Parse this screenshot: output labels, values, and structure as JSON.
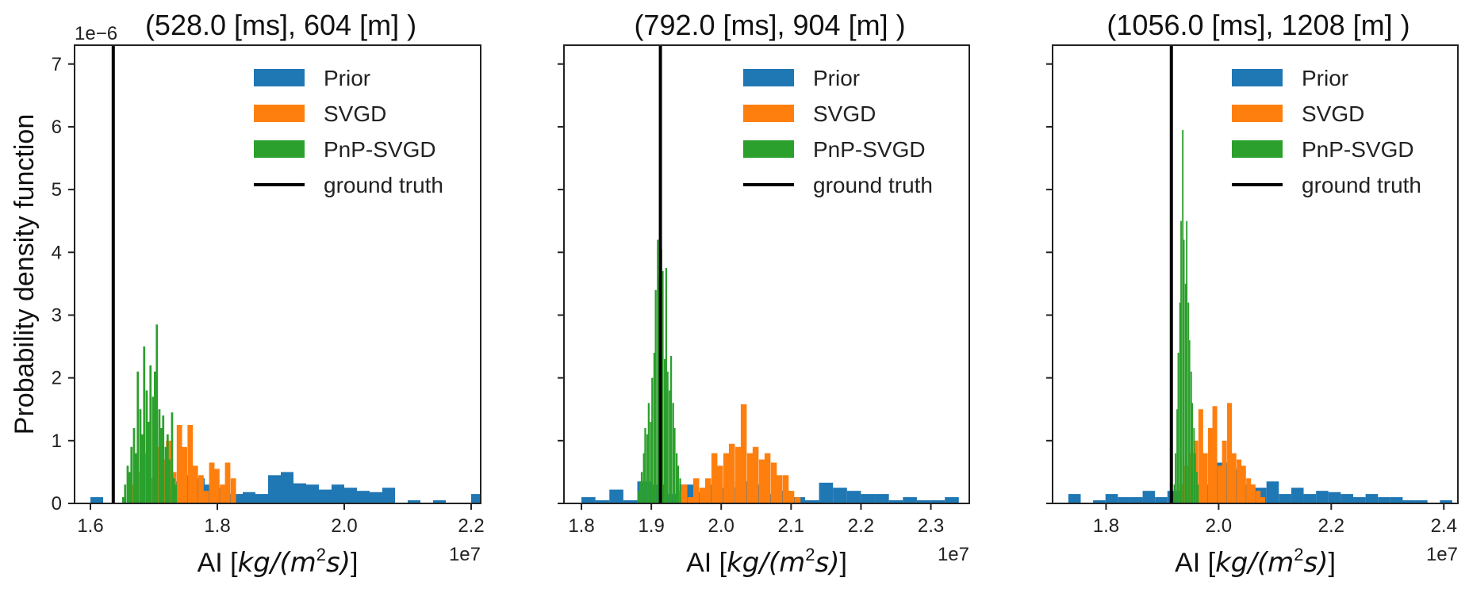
{
  "figure": {
    "ylabel": "Probability density function",
    "y_offset_label": "1e−6",
    "colors": {
      "prior": "#1f77b4",
      "svgd": "#ff7f0e",
      "pnp": "#2ca02c",
      "truth": "#000000"
    }
  },
  "chart_data": [
    {
      "type": "bar",
      "title": "(528.0 [ms], 604 [m] )",
      "xlabel_text": "AI [",
      "xlabel_math": "kg/(m",
      "xlabel_sup": "2",
      "xlabel_tail": "s)]",
      "xlabel_close": "]",
      "x_offset_label": "1e7",
      "xlim": [
        1.575,
        2.215
      ],
      "ylim": [
        0,
        7.3
      ],
      "x_ticks": [
        1.6,
        1.8,
        2.0,
        2.2
      ],
      "x_tick_labels": [
        "1.6",
        "1.8",
        "2.0",
        "2.2"
      ],
      "y_ticks": [
        0,
        1,
        2,
        3,
        4,
        5,
        6,
        7
      ],
      "y_tick_labels": [
        "0",
        "1",
        "2",
        "3",
        "4",
        "5",
        "6",
        "7"
      ],
      "ground_truth": 1.636,
      "legend": [
        "Prior",
        "SVGD",
        "PnP-SVGD",
        "ground truth"
      ],
      "series": [
        {
          "name": "Prior",
          "color_key": "prior",
          "bin_width": 0.02,
          "bins": [
            [
              1.6,
              0.1
            ],
            [
              1.62,
              0.0
            ],
            [
              1.64,
              0.0
            ],
            [
              1.66,
              0.05
            ],
            [
              1.68,
              0.12
            ],
            [
              1.7,
              0.2
            ],
            [
              1.72,
              0.35
            ],
            [
              1.74,
              0.45
            ],
            [
              1.76,
              0.4
            ],
            [
              1.78,
              0.3
            ],
            [
              1.8,
              0.25
            ],
            [
              1.82,
              0.15
            ],
            [
              1.84,
              0.18
            ],
            [
              1.86,
              0.15
            ],
            [
              1.88,
              0.45
            ],
            [
              1.9,
              0.5
            ],
            [
              1.92,
              0.32
            ],
            [
              1.94,
              0.3
            ],
            [
              1.96,
              0.22
            ],
            [
              1.98,
              0.3
            ],
            [
              2.0,
              0.25
            ],
            [
              2.02,
              0.2
            ],
            [
              2.04,
              0.18
            ],
            [
              2.06,
              0.25
            ],
            [
              2.08,
              0.0
            ],
            [
              2.1,
              0.05
            ],
            [
              2.12,
              0.0
            ],
            [
              2.14,
              0.05
            ],
            [
              2.16,
              0.0
            ],
            [
              2.18,
              0.0
            ],
            [
              2.2,
              0.15
            ]
          ]
        },
        {
          "name": "SVGD",
          "color_key": "svgd",
          "bin_width": 0.0085,
          "bins": [
            [
              1.66,
              0.3
            ],
            [
              1.668,
              0.2
            ],
            [
              1.676,
              0.5
            ],
            [
              1.685,
              0.8
            ],
            [
              1.693,
              0.4
            ],
            [
              1.702,
              0.9
            ],
            [
              1.71,
              0.7
            ],
            [
              1.719,
              1.0
            ],
            [
              1.727,
              0.5
            ],
            [
              1.736,
              1.25
            ],
            [
              1.744,
              0.9
            ],
            [
              1.753,
              1.25
            ],
            [
              1.761,
              0.6
            ],
            [
              1.77,
              0.45
            ],
            [
              1.778,
              0.2
            ],
            [
              1.787,
              0.65
            ],
            [
              1.795,
              0.55
            ],
            [
              1.804,
              0.3
            ],
            [
              1.812,
              0.65
            ],
            [
              1.821,
              0.4
            ]
          ]
        },
        {
          "name": "PnP-SVGD",
          "color_key": "pnp",
          "bin_width": 0.0034,
          "bins": [
            [
              1.65,
              0.1
            ],
            [
              1.653,
              0.3
            ],
            [
              1.657,
              0.6
            ],
            [
              1.66,
              0.5
            ],
            [
              1.663,
              0.9
            ],
            [
              1.667,
              1.2
            ],
            [
              1.67,
              0.8
            ],
            [
              1.673,
              2.1
            ],
            [
              1.677,
              1.5
            ],
            [
              1.68,
              1.1
            ],
            [
              1.683,
              2.5
            ],
            [
              1.687,
              1.8
            ],
            [
              1.69,
              1.3
            ],
            [
              1.693,
              2.2
            ],
            [
              1.697,
              1.7
            ],
            [
              1.7,
              2.1
            ],
            [
              1.703,
              2.85
            ],
            [
              1.707,
              1.5
            ],
            [
              1.71,
              1.2
            ],
            [
              1.713,
              1.4
            ],
            [
              1.717,
              0.9
            ],
            [
              1.72,
              1.1
            ],
            [
              1.723,
              0.7
            ],
            [
              1.727,
              1.45
            ],
            [
              1.73,
              0.4
            ],
            [
              1.733,
              0.3
            ]
          ]
        }
      ]
    },
    {
      "type": "bar",
      "title": "(792.0 [ms], 904 [m] )",
      "xlabel_text": "AI [",
      "xlabel_math": "kg/(m",
      "xlabel_sup": "2",
      "xlabel_tail": "s)]",
      "xlabel_close": "]",
      "x_offset_label": "1e7",
      "xlim": [
        1.775,
        2.355
      ],
      "ylim": [
        0,
        7.3
      ],
      "x_ticks": [
        1.8,
        1.9,
        2.0,
        2.1,
        2.2,
        2.3
      ],
      "x_tick_labels": [
        "1.8",
        "1.9",
        "2.0",
        "2.1",
        "2.2",
        "2.3"
      ],
      "y_ticks": [
        0,
        1,
        2,
        3,
        4,
        5,
        6,
        7
      ],
      "y_tick_labels": [],
      "ground_truth": 1.913,
      "legend": [
        "Prior",
        "SVGD",
        "PnP-SVGD",
        "ground truth"
      ],
      "series": [
        {
          "name": "Prior",
          "color_key": "prior",
          "bin_width": 0.02,
          "bins": [
            [
              1.8,
              0.1
            ],
            [
              1.82,
              0.05
            ],
            [
              1.84,
              0.22
            ],
            [
              1.86,
              0.05
            ],
            [
              1.88,
              0.35
            ],
            [
              1.9,
              0.3
            ],
            [
              1.92,
              0.15
            ],
            [
              1.94,
              0.3
            ],
            [
              1.96,
              0.18
            ],
            [
              1.98,
              0.3
            ],
            [
              2.0,
              0.25
            ],
            [
              2.02,
              0.35
            ],
            [
              2.04,
              0.3
            ],
            [
              2.06,
              0.15
            ],
            [
              2.08,
              0.2
            ],
            [
              2.1,
              0.1
            ],
            [
              2.12,
              0.05
            ],
            [
              2.14,
              0.33
            ],
            [
              2.16,
              0.25
            ],
            [
              2.18,
              0.2
            ],
            [
              2.2,
              0.15
            ],
            [
              2.22,
              0.15
            ],
            [
              2.24,
              0.05
            ],
            [
              2.26,
              0.1
            ],
            [
              2.28,
              0.05
            ],
            [
              2.3,
              0.05
            ],
            [
              2.32,
              0.1
            ]
          ]
        },
        {
          "name": "SVGD",
          "color_key": "svgd",
          "bin_width": 0.0085,
          "bins": [
            [
              1.935,
              0.2
            ],
            [
              1.943,
              0.3
            ],
            [
              1.952,
              0.1
            ],
            [
              1.96,
              0.4
            ],
            [
              1.969,
              0.25
            ],
            [
              1.977,
              0.4
            ],
            [
              1.986,
              0.8
            ],
            [
              1.994,
              0.6
            ],
            [
              2.003,
              0.8
            ],
            [
              2.011,
              0.95
            ],
            [
              2.02,
              0.9
            ],
            [
              2.028,
              1.58
            ],
            [
              2.037,
              0.8
            ],
            [
              2.045,
              0.9
            ],
            [
              2.054,
              0.7
            ],
            [
              2.062,
              0.8
            ],
            [
              2.071,
              0.65
            ],
            [
              2.079,
              0.45
            ],
            [
              2.088,
              0.45
            ],
            [
              2.096,
              0.2
            ],
            [
              2.105,
              0.1
            ]
          ]
        },
        {
          "name": "PnP-SVGD",
          "color_key": "pnp",
          "bin_width": 0.0026,
          "bins": [
            [
              1.88,
              0.2
            ],
            [
              1.883,
              0.35
            ],
            [
              1.885,
              0.5
            ],
            [
              1.888,
              0.8
            ],
            [
              1.89,
              1.2
            ],
            [
              1.893,
              1.1
            ],
            [
              1.895,
              1.6
            ],
            [
              1.898,
              1.3
            ],
            [
              1.9,
              2.0
            ],
            [
              1.903,
              2.4
            ],
            [
              1.905,
              3.4
            ],
            [
              1.908,
              4.2
            ],
            [
              1.91,
              3.6
            ],
            [
              1.913,
              4.05
            ],
            [
              1.915,
              3.7
            ],
            [
              1.918,
              2.3
            ],
            [
              1.92,
              3.75
            ],
            [
              1.922,
              2.1
            ],
            [
              1.925,
              1.8
            ],
            [
              1.927,
              2.35
            ],
            [
              1.93,
              1.6
            ],
            [
              1.932,
              1.2
            ],
            [
              1.935,
              0.8
            ],
            [
              1.937,
              0.6
            ],
            [
              1.94,
              0.4
            ]
          ]
        }
      ]
    },
    {
      "type": "bar",
      "title": "(1056.0 [ms], 1208 [m] )",
      "xlabel_text": "AI [",
      "xlabel_math": "kg/(m",
      "xlabel_sup": "2",
      "xlabel_tail": "s)]",
      "xlabel_close": "]",
      "x_offset_label": "1e7",
      "xlim": [
        1.705,
        2.425
      ],
      "ylim": [
        0,
        7.3
      ],
      "x_ticks": [
        1.8,
        2.0,
        2.2,
        2.4
      ],
      "x_tick_labels": [
        "1.8",
        "2.0",
        "2.2",
        "2.4"
      ],
      "y_ticks": [
        0,
        1,
        2,
        3,
        4,
        5,
        6,
        7
      ],
      "y_tick_labels": [],
      "ground_truth": 1.916,
      "legend": [
        "Prior",
        "SVGD",
        "PnP-SVGD",
        "ground truth"
      ],
      "series": [
        {
          "name": "Prior",
          "color_key": "prior",
          "bin_width": 0.022,
          "bins": [
            [
              1.733,
              0.15
            ],
            [
              1.755,
              0.0
            ],
            [
              1.777,
              0.05
            ],
            [
              1.799,
              0.15
            ],
            [
              1.821,
              0.1
            ],
            [
              1.843,
              0.1
            ],
            [
              1.865,
              0.2
            ],
            [
              1.887,
              0.1
            ],
            [
              1.909,
              0.2
            ],
            [
              1.931,
              0.25
            ],
            [
              1.953,
              0.2
            ],
            [
              1.975,
              0.3
            ],
            [
              1.997,
              0.65
            ],
            [
              2.019,
              0.55
            ],
            [
              2.041,
              0.3
            ],
            [
              2.063,
              0.25
            ],
            [
              2.085,
              0.35
            ],
            [
              2.107,
              0.15
            ],
            [
              2.129,
              0.25
            ],
            [
              2.151,
              0.15
            ],
            [
              2.173,
              0.2
            ],
            [
              2.195,
              0.18
            ],
            [
              2.217,
              0.15
            ],
            [
              2.239,
              0.1
            ],
            [
              2.261,
              0.15
            ],
            [
              2.283,
              0.1
            ],
            [
              2.305,
              0.1
            ],
            [
              2.327,
              0.05
            ],
            [
              2.349,
              0.05
            ],
            [
              2.371,
              0.0
            ],
            [
              2.393,
              0.05
            ]
          ]
        },
        {
          "name": "SVGD",
          "color_key": "svgd",
          "bin_width": 0.0085,
          "bins": [
            [
              1.93,
              0.3
            ],
            [
              1.938,
              0.6
            ],
            [
              1.947,
              0.8
            ],
            [
              1.955,
              1.0
            ],
            [
              1.964,
              1.5
            ],
            [
              1.972,
              0.8
            ],
            [
              1.981,
              1.2
            ],
            [
              1.989,
              1.55
            ],
            [
              1.998,
              0.6
            ],
            [
              2.006,
              1.0
            ],
            [
              2.015,
              1.6
            ],
            [
              2.023,
              0.8
            ],
            [
              2.032,
              0.7
            ],
            [
              2.04,
              0.6
            ],
            [
              2.049,
              0.4
            ],
            [
              2.057,
              0.3
            ],
            [
              2.066,
              0.2
            ],
            [
              2.074,
              0.1
            ]
          ]
        },
        {
          "name": "PnP-SVGD",
          "color_key": "pnp",
          "bin_width": 0.0026,
          "bins": [
            [
              1.92,
              0.3
            ],
            [
              1.922,
              0.8
            ],
            [
              1.925,
              1.5
            ],
            [
              1.927,
              2.4
            ],
            [
              1.93,
              3.2
            ],
            [
              1.932,
              4.5
            ],
            [
              1.935,
              5.95
            ],
            [
              1.937,
              4.2
            ],
            [
              1.94,
              3.5
            ],
            [
              1.942,
              4.5
            ],
            [
              1.945,
              3.2
            ],
            [
              1.947,
              2.6
            ],
            [
              1.95,
              2.1
            ],
            [
              1.952,
              1.6
            ],
            [
              1.955,
              1.2
            ],
            [
              1.957,
              0.8
            ],
            [
              1.96,
              0.5
            ],
            [
              1.962,
              0.3
            ]
          ]
        }
      ]
    }
  ]
}
